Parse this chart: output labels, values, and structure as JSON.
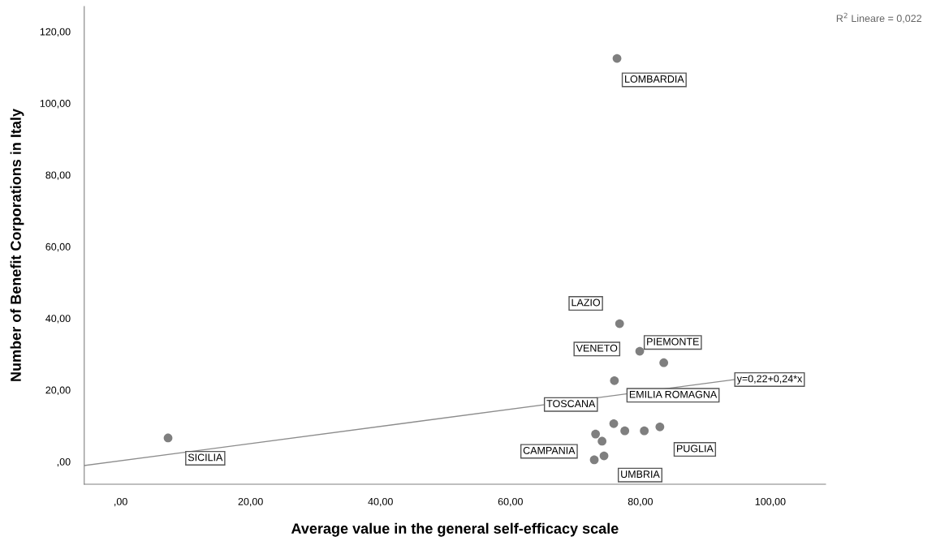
{
  "chart_data": {
    "type": "scatter",
    "xlabel": "Average value in the general self-efficacy scale",
    "ylabel": "Number of Benefit Corporations in Italy",
    "xlim": [
      -5.6,
      108.5
    ],
    "ylim": [
      -6.3,
      127
    ],
    "xticks": [
      {
        "value": 0,
        "label": ",00"
      },
      {
        "value": 20,
        "label": "20,00"
      },
      {
        "value": 40,
        "label": "40,00"
      },
      {
        "value": 60,
        "label": "60,00"
      },
      {
        "value": 80,
        "label": "80,00"
      },
      {
        "value": 100,
        "label": "100,00"
      }
    ],
    "yticks": [
      {
        "value": 0,
        "label": ",00"
      },
      {
        "value": 20,
        "label": "20,00"
      },
      {
        "value": 40,
        "label": "40,00"
      },
      {
        "value": 60,
        "label": "60,00"
      },
      {
        "value": 80,
        "label": "80,00"
      },
      {
        "value": 100,
        "label": "100,00"
      },
      {
        "value": 120,
        "label": "120,00"
      }
    ],
    "grid": false,
    "series": [
      {
        "marker": "circle",
        "color": "#7f7f7f",
        "x": [
          7.3,
          76.4,
          76.8,
          79.9,
          83.6,
          76.0,
          75.9,
          77.6,
          80.6,
          83.0,
          73.1,
          74.1,
          74.4,
          72.9
        ],
        "values": [
          6.6,
          112.5,
          38.5,
          30.8,
          27.6,
          22.6,
          10.6,
          8.6,
          8.6,
          9.7,
          7.7,
          5.7,
          1.6,
          0.5
        ]
      },
      {
        "type": "line",
        "color": "#8c8c8c",
        "x": [
          -5.6,
          94.5
        ],
        "values": [
          -1.1,
          22.9
        ]
      }
    ],
    "annotations": [
      "R$^{2}$ Lineare = 0,022",
      {
        "text": "LOMBARDIA",
        "x": 76.4,
        "y": 112.5
      },
      {
        "text": "LAZIO",
        "x": 76.8,
        "y": 38.5
      },
      {
        "text": "VENETO",
        "x": 79.9,
        "y": 30.8
      },
      {
        "text": "PIEMONTE",
        "x": 83.6,
        "y": 27.6
      },
      {
        "text": "EMILIA ROMAGNA",
        "x": 76.0,
        "y": 22.6
      },
      {
        "text": "TOSCANA",
        "x": 75.9,
        "y": 10.6
      },
      {
        "text": "PUGLIA",
        "x": 83.0,
        "y": 9.7
      },
      {
        "text": "CAMPANIA",
        "x": 74.1,
        "y": 5.7
      },
      {
        "text": "UMBRIA",
        "x": 74.4,
        "y": 1.6
      },
      {
        "text": "SICILIA",
        "x": 7.3,
        "y": 6.6
      },
      {
        "text": "y=0,22+0,24*x",
        "x": 94.5,
        "y": 22.9
      }
    ]
  }
}
